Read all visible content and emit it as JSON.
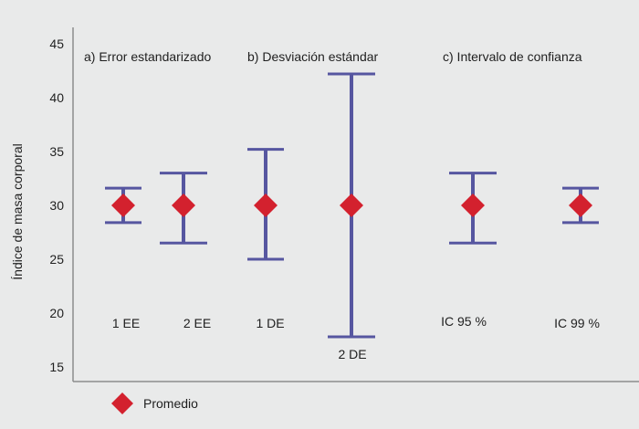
{
  "chart_data": {
    "type": "errorbar",
    "ylabel": "Índice de masa corporal",
    "ylim": [
      15,
      45
    ],
    "yticks": [
      15,
      20,
      25,
      30,
      35,
      40,
      45
    ],
    "grid": false,
    "legend": {
      "placement": "bottom-left",
      "entries": [
        {
          "label": "Promedio",
          "marker": "diamond"
        }
      ]
    },
    "colors": {
      "whisker": "#5656a0",
      "marker": "#d3212e",
      "axis": "#8c8c8c",
      "background": "#e9eaea"
    },
    "sections": [
      {
        "title": "a) Error estandarizado"
      },
      {
        "title": "b) Desviación estándar"
      },
      {
        "title": "c) Intervalo de confianza"
      }
    ],
    "points": [
      {
        "label": "1 EE",
        "mean": 30,
        "low": 28.4,
        "high": 31.6
      },
      {
        "label": "2 EE",
        "mean": 30,
        "low": 26.5,
        "high": 33.0
      },
      {
        "label": "1 DE",
        "mean": 30,
        "low": 25.0,
        "high": 35.2
      },
      {
        "label": "2 DE",
        "mean": 30,
        "low": 17.8,
        "high": 42.2
      },
      {
        "label": "IC 95 %",
        "mean": 30,
        "low": 26.5,
        "high": 33.0
      },
      {
        "label": "IC 99 %",
        "mean": 30,
        "low": 28.4,
        "high": 31.6
      }
    ]
  }
}
